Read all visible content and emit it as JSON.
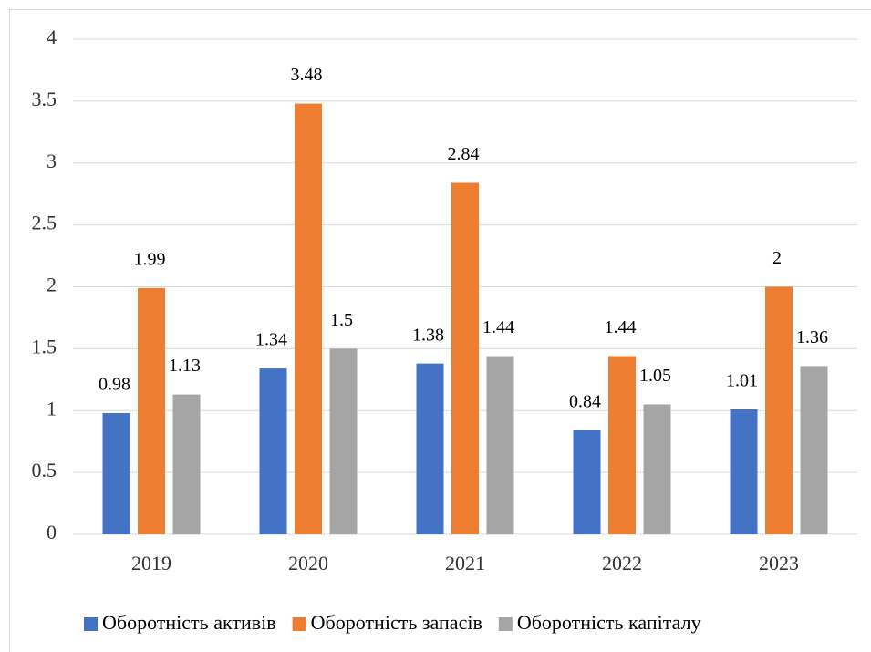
{
  "chart_data": {
    "type": "bar",
    "categories": [
      "2019",
      "2020",
      "2021",
      "2022",
      "2023"
    ],
    "series": [
      {
        "name": "Оборотність активів",
        "color": "#4472c4",
        "values": [
          0.98,
          1.34,
          1.38,
          0.84,
          1.01
        ]
      },
      {
        "name": "Оборотність запасів",
        "color": "#ed7d31",
        "values": [
          1.99,
          3.48,
          2.84,
          1.44,
          2
        ]
      },
      {
        "name": "Оборотність капіталу",
        "color": "#a5a5a5",
        "values": [
          1.13,
          1.5,
          1.44,
          1.05,
          1.36
        ]
      }
    ],
    "ylim": [
      0,
      4
    ],
    "yticks": [
      0,
      0.5,
      1,
      1.5,
      2,
      2.5,
      3,
      3.5,
      4
    ],
    "grid": true,
    "legend": "bottom"
  }
}
